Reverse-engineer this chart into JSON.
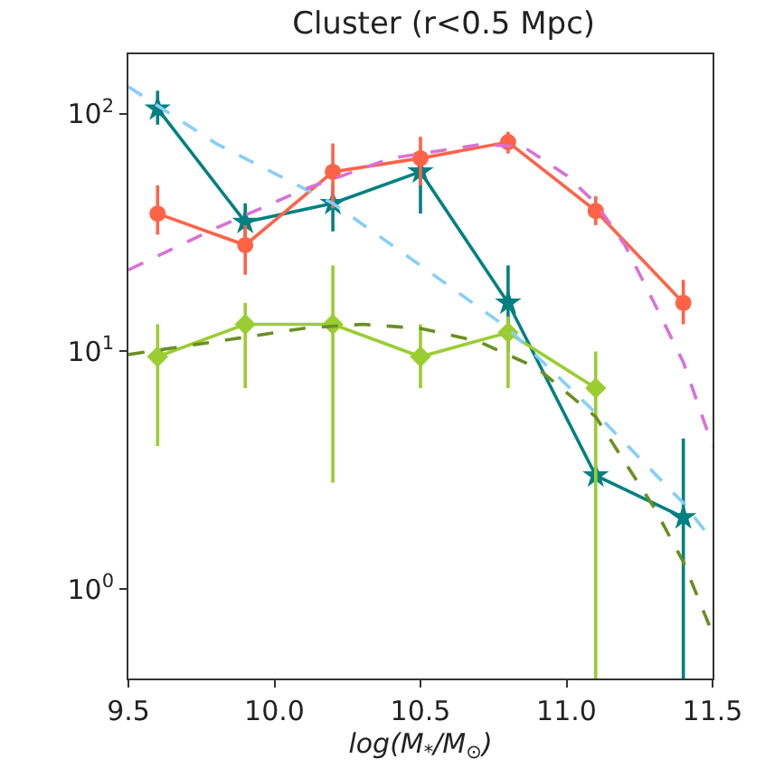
{
  "chart_data": {
    "type": "line",
    "title": "Cluster (r<0.5 Mpc)",
    "xlabel": "log(M$_{*}$/M$_{⊙}$)",
    "x": [
      9.6,
      9.9,
      10.2,
      10.5,
      10.8,
      11.1,
      11.4
    ],
    "series": [
      {
        "color": "#008080",
        "marker": "star",
        "values": [
          105,
          35,
          42,
          57,
          16,
          3,
          2
        ],
        "errors": [
          [
            90,
            125
          ],
          [
            30,
            42
          ],
          [
            32,
            50
          ],
          [
            38,
            57
          ],
          [
            10,
            23
          ],
          null,
          [
            0.42,
            4.3
          ]
        ]
      },
      {
        "color": "#ff6347",
        "marker": "circle",
        "values": [
          38,
          28,
          57,
          65,
          76,
          39,
          16
        ],
        "errors": [
          [
            31,
            50
          ],
          [
            21,
            34
          ],
          [
            40,
            75
          ],
          [
            50,
            80
          ],
          [
            68,
            84
          ],
          [
            34,
            45
          ],
          [
            13,
            20
          ]
        ]
      },
      {
        "color": "#9acd32",
        "marker": "diamond",
        "values": [
          9.5,
          13,
          13,
          9.5,
          12,
          7,
          null
        ],
        "errors": [
          [
            4,
            13
          ],
          [
            7,
            16
          ],
          [
            2.8,
            23
          ],
          [
            7,
            13
          ],
          [
            7,
            14
          ],
          [
            0.42,
            10
          ],
          null
        ]
      },
      {
        "color": "#87cefa",
        "marker": "none",
        "line_style": "dashed",
        "x": [
          9.5,
          9.8,
          10.2,
          10.5,
          10.8,
          11.1,
          11.4,
          11.5
        ],
        "values": [
          130,
          75,
          42,
          23,
          12.5,
          5.5,
          2.3,
          1.6
        ]
      },
      {
        "color": "#da70d6",
        "marker": "none",
        "line_style": "dashed",
        "x": [
          9.5,
          9.8,
          10.1,
          10.4,
          10.7,
          10.85,
          11.0,
          11.1,
          11.2,
          11.3,
          11.4,
          11.5
        ],
        "values": [
          22,
          33,
          48,
          65,
          74,
          73,
          55,
          42,
          28,
          16,
          9,
          4
        ]
      },
      {
        "color": "#6b8e23",
        "marker": "none",
        "line_style": "dashed",
        "x": [
          9.5,
          9.8,
          10.1,
          10.3,
          10.5,
          10.7,
          10.9,
          11.1,
          11.3,
          11.4,
          11.5
        ],
        "values": [
          9.7,
          11,
          12.5,
          13,
          12.5,
          11,
          8.5,
          5.3,
          2.2,
          1.3,
          0.65
        ]
      }
    ],
    "xlim": [
      9.5,
      11.5
    ],
    "xticks": [
      9.5,
      {
        "value": 10,
        "label": "10.0"
      },
      10.5,
      {
        "value": 11,
        "label": "11.0"
      },
      11.5
    ],
    "ylim": [
      0.42,
      178
    ],
    "yticks": [
      {
        "value": 1,
        "label": "10$^{0}$"
      },
      {
        "value": 10,
        "label": "10$^{1}$"
      },
      {
        "value": 100,
        "label": "10$^{2}$"
      }
    ],
    "log": true
  }
}
